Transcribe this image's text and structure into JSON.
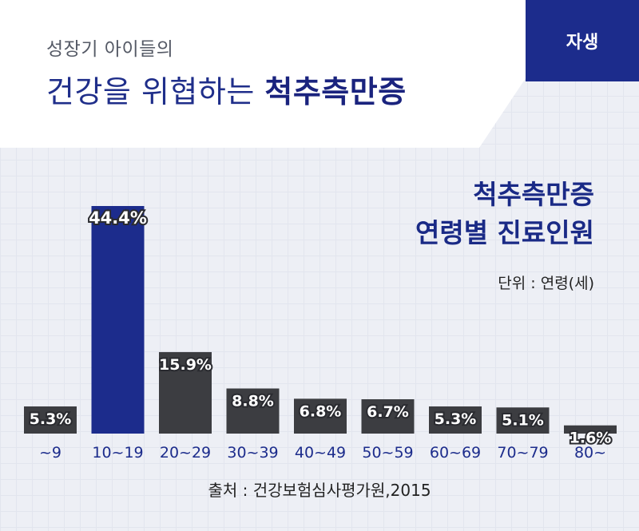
{
  "header": {
    "subtitle": "성장기 아이들의",
    "title_prefix": "건강을 위협하는 ",
    "title_emphasis": "척추측만증",
    "badge": "자생"
  },
  "chart_data": {
    "type": "bar",
    "title": "척추측만증\n연령별 진료인원",
    "title_line1": "척추측만증",
    "title_line2": "연령별 진료인원",
    "unit_label": "단위 : 연령(세)",
    "categories": [
      "~9",
      "10~19",
      "20~29",
      "30~39",
      "40~49",
      "50~59",
      "60~69",
      "70~79",
      "80~"
    ],
    "values": [
      5.3,
      44.4,
      15.9,
      8.8,
      6.8,
      6.7,
      5.3,
      5.1,
      1.6
    ],
    "value_labels": [
      "5.3%",
      "44.4%",
      "15.9%",
      "8.8%",
      "6.8%",
      "6.7%",
      "5.3%",
      "5.1%",
      "1.6%"
    ],
    "highlight_index": 1,
    "colors": {
      "bar": "#3c3d41",
      "highlight": "#1c2c8c"
    },
    "grid": true,
    "legend": "none"
  },
  "footer": {
    "source": "출처 : 건강보험심사평가원,2015"
  }
}
